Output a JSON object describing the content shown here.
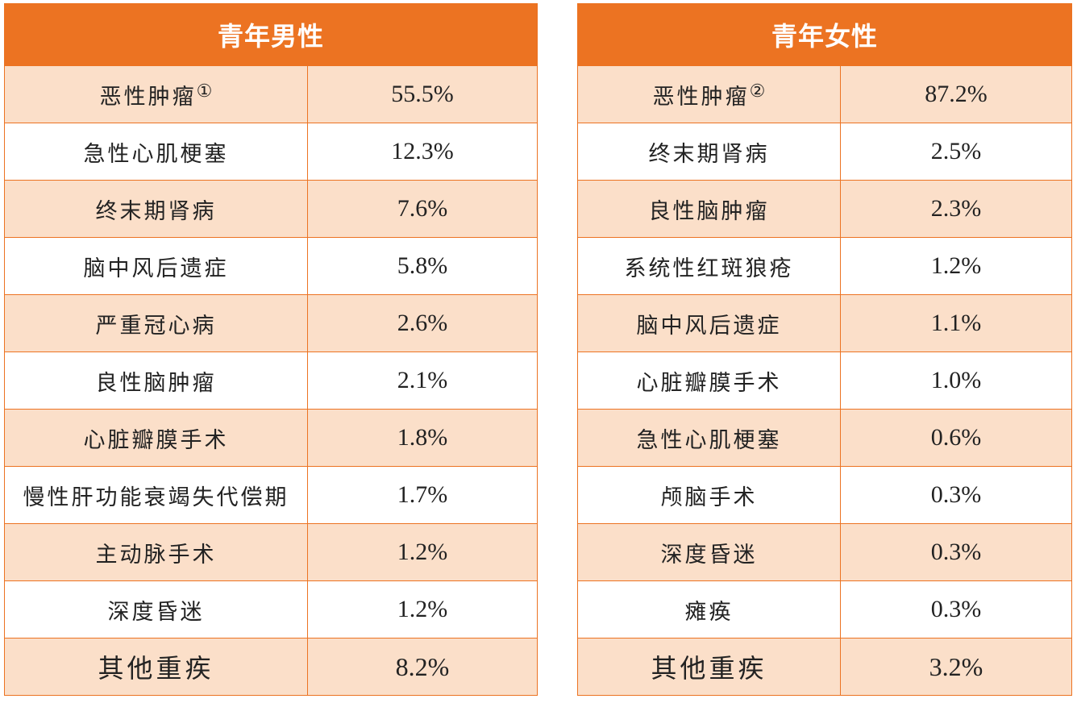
{
  "male": {
    "title": "青年男性",
    "rows": [
      {
        "name": "恶性肿瘤",
        "note": "①",
        "pct": "55.5%"
      },
      {
        "name": "急性心肌梗塞",
        "note": "",
        "pct": "12.3%"
      },
      {
        "name": "终末期肾病",
        "note": "",
        "pct": "7.6%"
      },
      {
        "name": "脑中风后遗症",
        "note": "",
        "pct": "5.8%"
      },
      {
        "name": "严重冠心病",
        "note": "",
        "pct": "2.6%"
      },
      {
        "name": "良性脑肿瘤",
        "note": "",
        "pct": "2.1%"
      },
      {
        "name": "心脏瓣膜手术",
        "note": "",
        "pct": "1.8%"
      },
      {
        "name": "慢性肝功能衰竭失代偿期",
        "note": "",
        "pct": "1.7%"
      },
      {
        "name": "主动脉手术",
        "note": "",
        "pct": "1.2%"
      },
      {
        "name": "深度昏迷",
        "note": "",
        "pct": "1.2%"
      },
      {
        "name": "其他重疾",
        "note": "",
        "pct": "8.2%"
      }
    ]
  },
  "female": {
    "title": "青年女性",
    "rows": [
      {
        "name": "恶性肿瘤",
        "note": "②",
        "pct": "87.2%"
      },
      {
        "name": "终末期肾病",
        "note": "",
        "pct": "2.5%"
      },
      {
        "name": "良性脑肿瘤",
        "note": "",
        "pct": "2.3%"
      },
      {
        "name": "系统性红斑狼疮",
        "note": "",
        "pct": "1.2%"
      },
      {
        "name": "脑中风后遗症",
        "note": "",
        "pct": "1.1%"
      },
      {
        "name": "心脏瓣膜手术",
        "note": "",
        "pct": "1.0%"
      },
      {
        "name": "急性心肌梗塞",
        "note": "",
        "pct": "0.6%"
      },
      {
        "name": "颅脑手术",
        "note": "",
        "pct": "0.3%"
      },
      {
        "name": "深度昏迷",
        "note": "",
        "pct": "0.3%"
      },
      {
        "name": "瘫痪",
        "note": "",
        "pct": "0.3%"
      },
      {
        "name": "其他重疾",
        "note": "",
        "pct": "3.2%"
      }
    ]
  },
  "colors": {
    "header": "#EC7322",
    "shade": "#FBDFC9",
    "plain": "#FFFFFF"
  }
}
